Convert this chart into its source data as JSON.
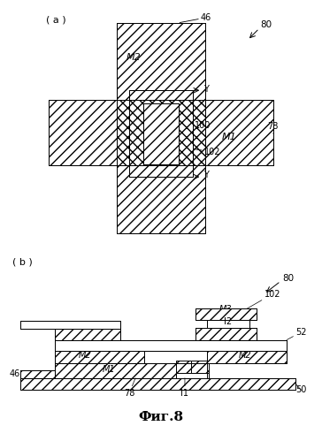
{
  "fig_label_a": "( a )",
  "fig_label_b": "( b )",
  "fig_caption": "Фиг.8",
  "label_80": "80",
  "label_46": "46",
  "label_78": "78",
  "label_M1": "M1",
  "label_M2": "M2",
  "label_M3": "M3",
  "label_100": "100",
  "label_102": "102",
  "label_Y": "Y",
  "label_50": "50",
  "label_52": "52",
  "label_I1": "I1",
  "label_I2": "I2",
  "bg_color": "#ffffff",
  "line_color": "#000000",
  "lw": 0.7
}
